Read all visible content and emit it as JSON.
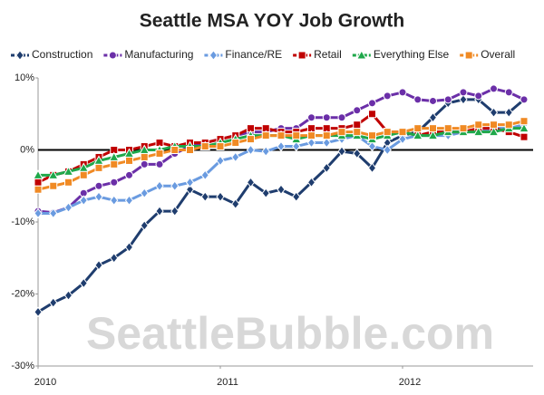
{
  "chart_data": {
    "type": "line",
    "title": "Seattle MSA YOY Job Growth",
    "watermark": "SeattleBubble.com",
    "categories": [
      "2010",
      null,
      null,
      null,
      null,
      null,
      null,
      null,
      null,
      null,
      null,
      null,
      "2011",
      null,
      null,
      null,
      null,
      null,
      null,
      null,
      null,
      null,
      null,
      null,
      "2012",
      null,
      null,
      null,
      null,
      null,
      null,
      null,
      null
    ],
    "ylim": [
      -30,
      10
    ],
    "yticks": [
      {
        "value": -30,
        "label": "-30%"
      },
      {
        "value": -20,
        "label": "-20%"
      },
      {
        "value": -10,
        "label": "-10%"
      },
      {
        "value": 0,
        "label": "0%"
      },
      {
        "value": 10,
        "label": "10%"
      }
    ],
    "legend": "top",
    "series": [
      {
        "name": "Construction",
        "color": "#1f3d6e",
        "marker": "diamond",
        "values": [
          -22.5,
          -21.2,
          -20.2,
          -18.5,
          -16,
          -15,
          -13.5,
          -10.5,
          -8.5,
          -8.5,
          -5.5,
          -6.5,
          -6.5,
          -7.5,
          -4.5,
          -6,
          -5.5,
          -6.5,
          -4.5,
          -2.5,
          -0.2,
          -0.5,
          -2.5,
          1,
          2,
          2.5,
          4.5,
          6.5,
          7,
          7,
          5.2,
          5.2,
          7
        ]
      },
      {
        "name": "Manufacturing",
        "color": "#6b2fa8",
        "marker": "circle",
        "values": [
          -8.5,
          -8.7,
          -8,
          -6,
          -5,
          -4.5,
          -3.5,
          -2,
          -2,
          -0.5,
          0.5,
          1,
          1.5,
          2,
          2.5,
          2.5,
          3,
          3,
          4.5,
          4.5,
          4.5,
          5.5,
          6.5,
          7.5,
          8,
          7,
          6.8,
          7,
          8,
          7.5,
          8.5,
          8,
          7
        ]
      },
      {
        "name": "Finance/RE",
        "color": "#6a9be0",
        "marker": "diamond",
        "values": [
          -8.8,
          -8.8,
          -8,
          -7,
          -6.5,
          -7,
          -7,
          -6,
          -5,
          -5,
          -4.5,
          -3.5,
          -1.5,
          -1,
          0,
          -0.2,
          0.5,
          0.5,
          1,
          1,
          1.5,
          2,
          0.5,
          0,
          1.5,
          2,
          2,
          2,
          2.5,
          2.5,
          3,
          3,
          3.5
        ]
      },
      {
        "name": "Retail",
        "color": "#c00000",
        "marker": "square",
        "values": [
          -4.5,
          -3.5,
          -3,
          -2,
          -1,
          0,
          0,
          0.5,
          1,
          0.5,
          1,
          1,
          1.5,
          2,
          3,
          3,
          2.5,
          2.5,
          3,
          3,
          3,
          3.5,
          5,
          2.5,
          2.5,
          2,
          2.5,
          2.5,
          2.5,
          3,
          3,
          2.5,
          1.8
        ]
      },
      {
        "name": "Everything Else",
        "color": "#1fa84a",
        "marker": "triangle",
        "values": [
          -3.5,
          -3.5,
          -3,
          -2.5,
          -1.5,
          -1,
          -0.5,
          0,
          0,
          0.5,
          0.5,
          0.5,
          1,
          1.5,
          2,
          2,
          2,
          1.5,
          2,
          2,
          2,
          2,
          1.5,
          2,
          2.5,
          2,
          2,
          2.5,
          2.5,
          2.5,
          2.5,
          3,
          3
        ]
      },
      {
        "name": "Overall",
        "color": "#f08a24",
        "marker": "square",
        "values": [
          -5.5,
          -5,
          -4.5,
          -3.5,
          -2.5,
          -2,
          -1.5,
          -1,
          -0.5,
          0,
          0,
          0.5,
          0.5,
          1,
          1.5,
          2,
          2,
          2,
          2,
          2,
          2.5,
          2.5,
          2,
          2.5,
          2.5,
          3,
          3,
          3,
          3,
          3.5,
          3.5,
          3.5,
          4
        ]
      }
    ]
  }
}
